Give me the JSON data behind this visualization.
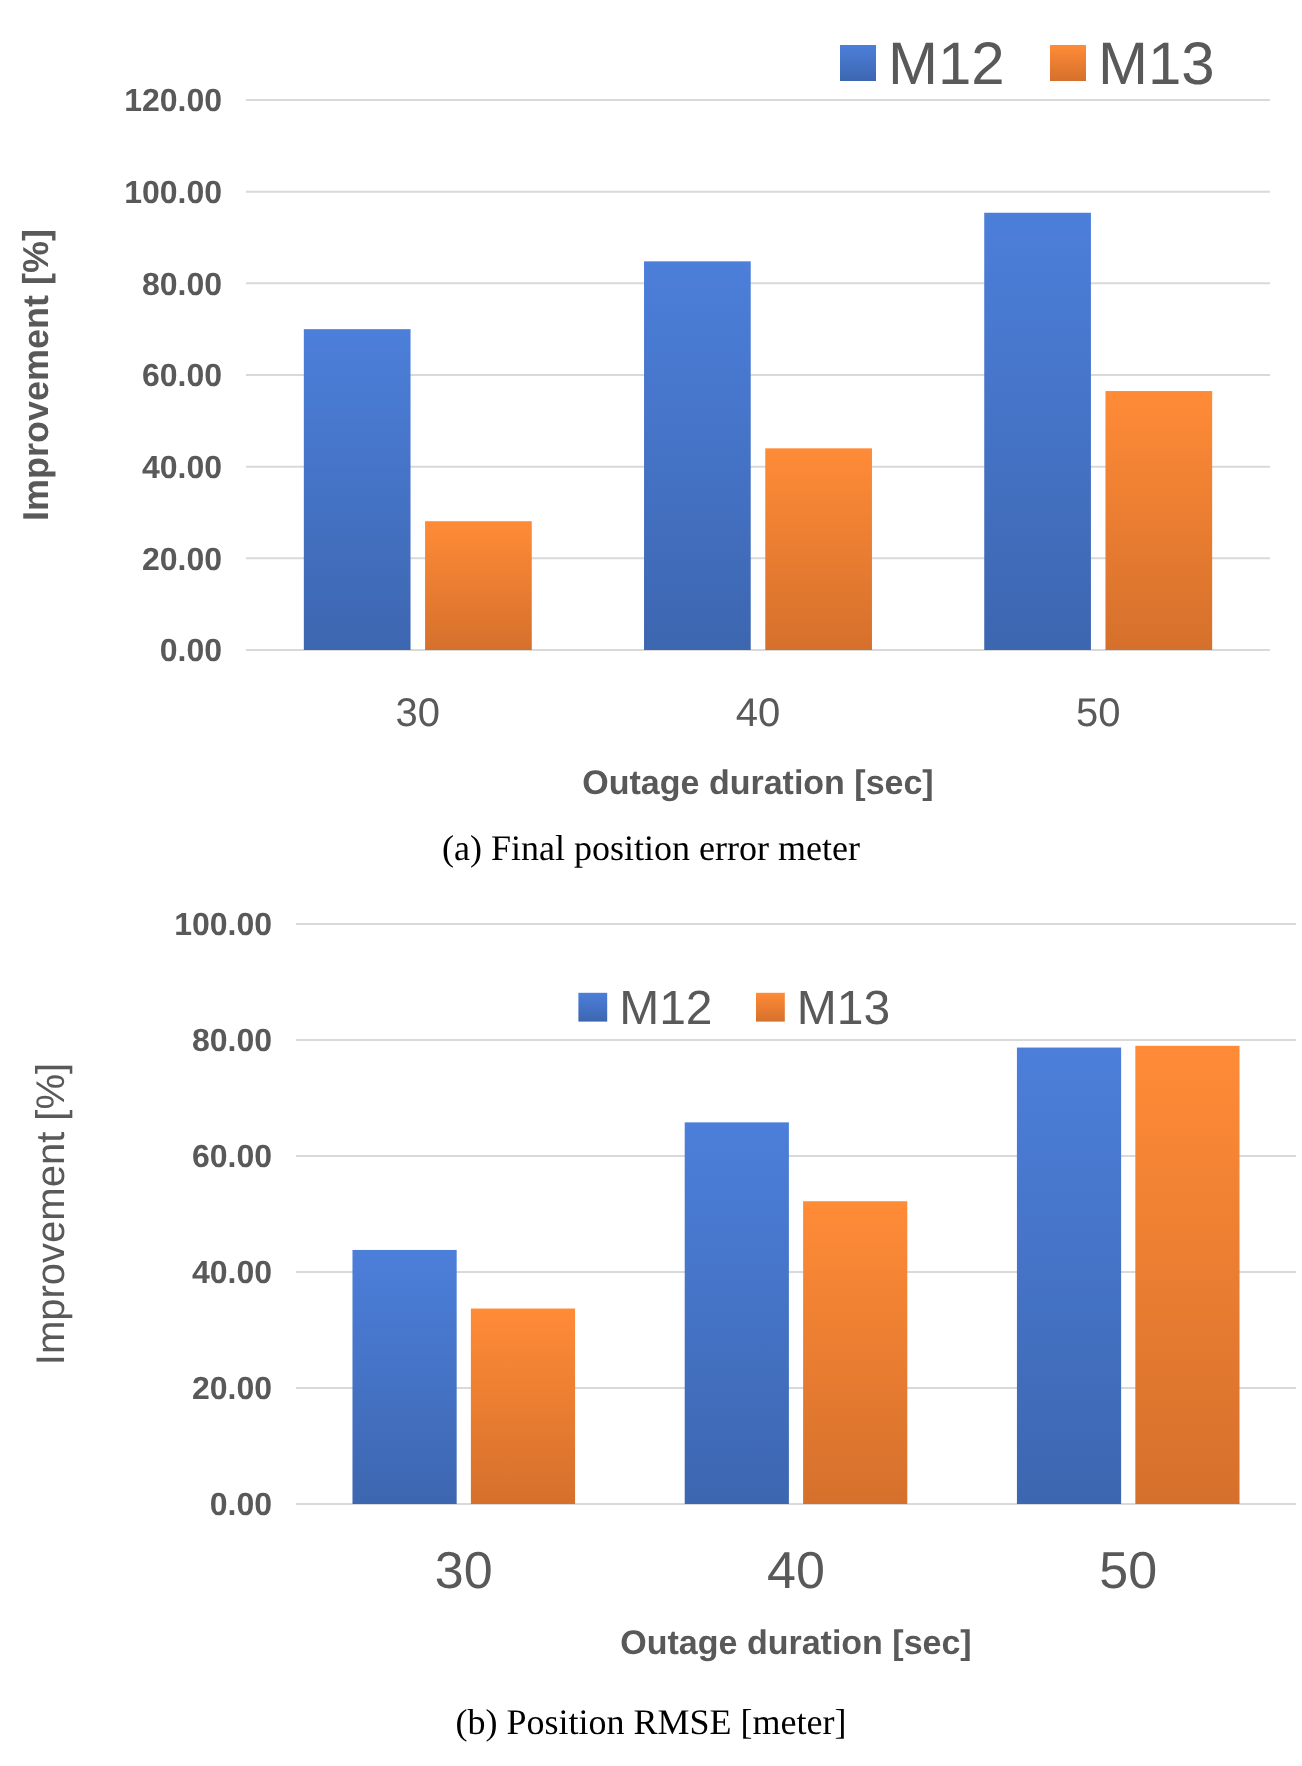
{
  "chart_data": [
    {
      "type": "bar",
      "xlabel": "Outage duration [sec]",
      "ylabel": "Improvement [%]",
      "categories": [
        "30",
        "40",
        "50"
      ],
      "series": [
        {
          "name": "M12",
          "color": "#4472c4",
          "values": [
            70.0,
            84.8,
            95.4
          ]
        },
        {
          "name": "M13",
          "color": "#ed7d31",
          "values": [
            28.1,
            44.0,
            56.5
          ]
        }
      ],
      "ylim": [
        0,
        120
      ],
      "yticks": [
        {
          "value": 0,
          "label": "0.00"
        },
        {
          "value": 20,
          "label": "20.00"
        },
        {
          "value": 40,
          "label": "40.00"
        },
        {
          "value": 60,
          "label": "60.00"
        },
        {
          "value": 80,
          "label": "80.00"
        },
        {
          "value": 100,
          "label": "100.00"
        },
        {
          "value": 120,
          "label": "120.00"
        }
      ],
      "grid": "y",
      "legend": "top right",
      "annotations": [
        "(a) Final position error meter"
      ]
    },
    {
      "type": "bar",
      "xlabel": "Outage duration [sec]",
      "ylabel": "Improvement [%]",
      "categories": [
        "30",
        "40",
        "50"
      ],
      "series": [
        {
          "name": "M12",
          "color": "#4472c4",
          "values": [
            43.8,
            65.8,
            78.7
          ]
        },
        {
          "name": "M13",
          "color": "#ed7d31",
          "values": [
            33.7,
            52.2,
            79.0
          ]
        }
      ],
      "ylim": [
        0,
        100
      ],
      "yticks": [
        {
          "value": 0,
          "label": "0.00"
        },
        {
          "value": 20,
          "label": "20.00"
        },
        {
          "value": 40,
          "label": "40.00"
        },
        {
          "value": 60,
          "label": "60.00"
        },
        {
          "value": 80,
          "label": "80.00"
        },
        {
          "value": 100,
          "label": "100.00"
        }
      ],
      "grid": "y",
      "legend": "top",
      "annotations": [
        "(b) Position RMSE [meter]"
      ]
    }
  ]
}
